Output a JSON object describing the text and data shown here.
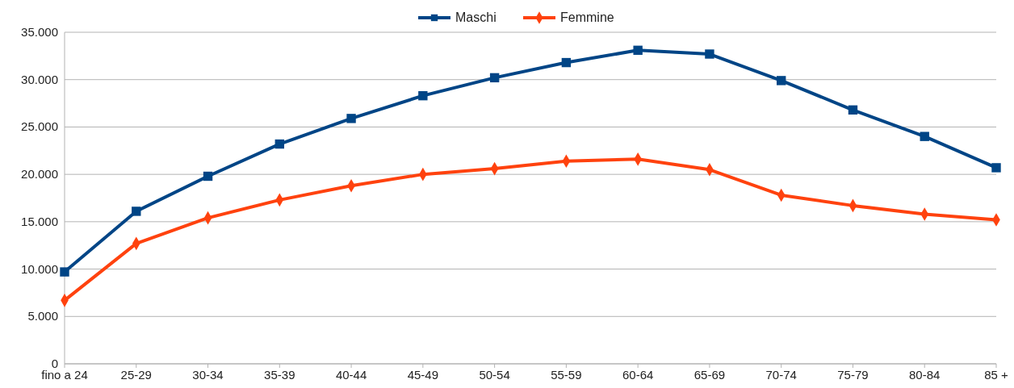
{
  "chart_data": {
    "type": "line",
    "categories": [
      "fino a 24",
      "25-29",
      "30-34",
      "35-39",
      "40-44",
      "45-49",
      "50-54",
      "55-59",
      "60-64",
      "65-69",
      "70-74",
      "75-79",
      "80-84",
      "85 +"
    ],
    "series": [
      {
        "name": "Maschi",
        "color": "#004586",
        "marker": "square",
        "values": [
          9700,
          16100,
          19800,
          23200,
          25900,
          28300,
          30200,
          31800,
          33100,
          32700,
          29900,
          26800,
          24000,
          20700
        ]
      },
      {
        "name": "Femmine",
        "color": "#ff420e",
        "marker": "diamond",
        "values": [
          6700,
          12700,
          15400,
          17300,
          18800,
          20000,
          20600,
          21400,
          21600,
          20500,
          17800,
          16700,
          15800,
          15200
        ]
      }
    ],
    "ylim": [
      0,
      35000
    ],
    "yticks": [
      0,
      {
        "value": 5000,
        "label": "5.000"
      },
      {
        "value": 10000,
        "label": "10.000"
      },
      {
        "value": 15000,
        "label": "15.000"
      },
      {
        "value": 20000,
        "label": "20.000"
      },
      {
        "value": 25000,
        "label": "25.000"
      },
      {
        "value": 30000,
        "label": "30.000"
      },
      {
        "value": 35000,
        "label": "35.000"
      }
    ],
    "grid": "y",
    "legend": "top"
  }
}
